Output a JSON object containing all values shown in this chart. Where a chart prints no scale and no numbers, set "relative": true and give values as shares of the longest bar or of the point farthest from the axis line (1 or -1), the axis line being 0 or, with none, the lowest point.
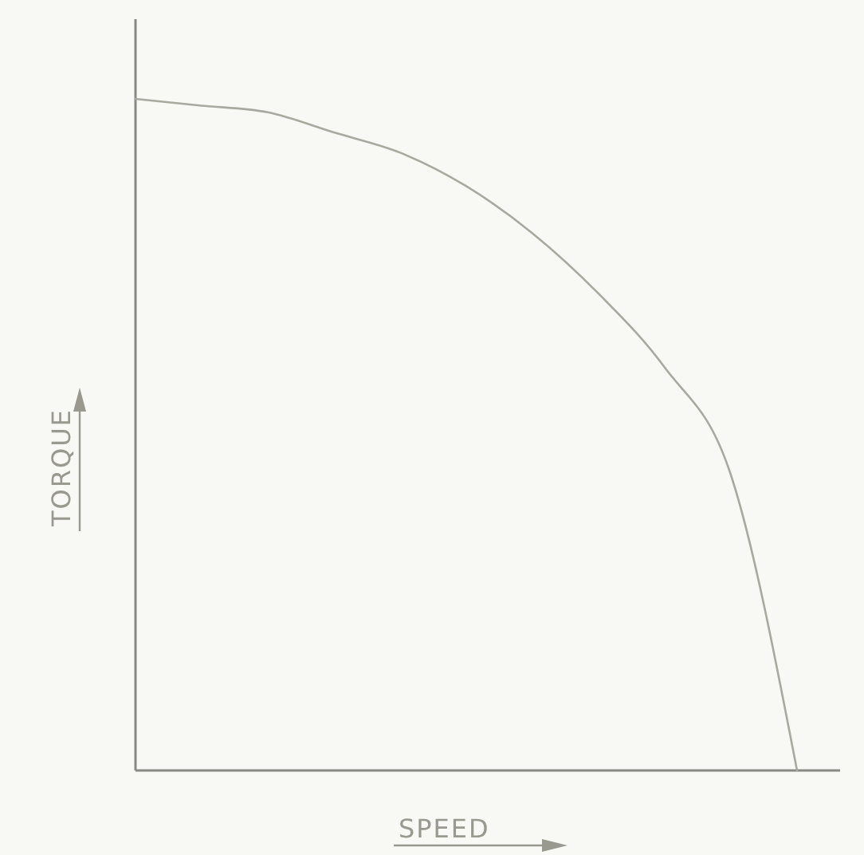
{
  "chart_data": {
    "type": "line",
    "xlabel": "SPEED",
    "ylabel": "TORQUE",
    "relative": true,
    "categories": [
      null,
      null,
      null,
      null,
      null,
      null,
      null,
      null,
      null,
      null,
      null
    ],
    "series": [
      {
        "color": "#a9a9a0",
        "values": [
          1,
          0.99,
          0.98,
          0.95,
          0.92,
          0.87,
          0.8,
          0.71,
          0.6,
          0.44,
          0
        ]
      }
    ]
  }
}
